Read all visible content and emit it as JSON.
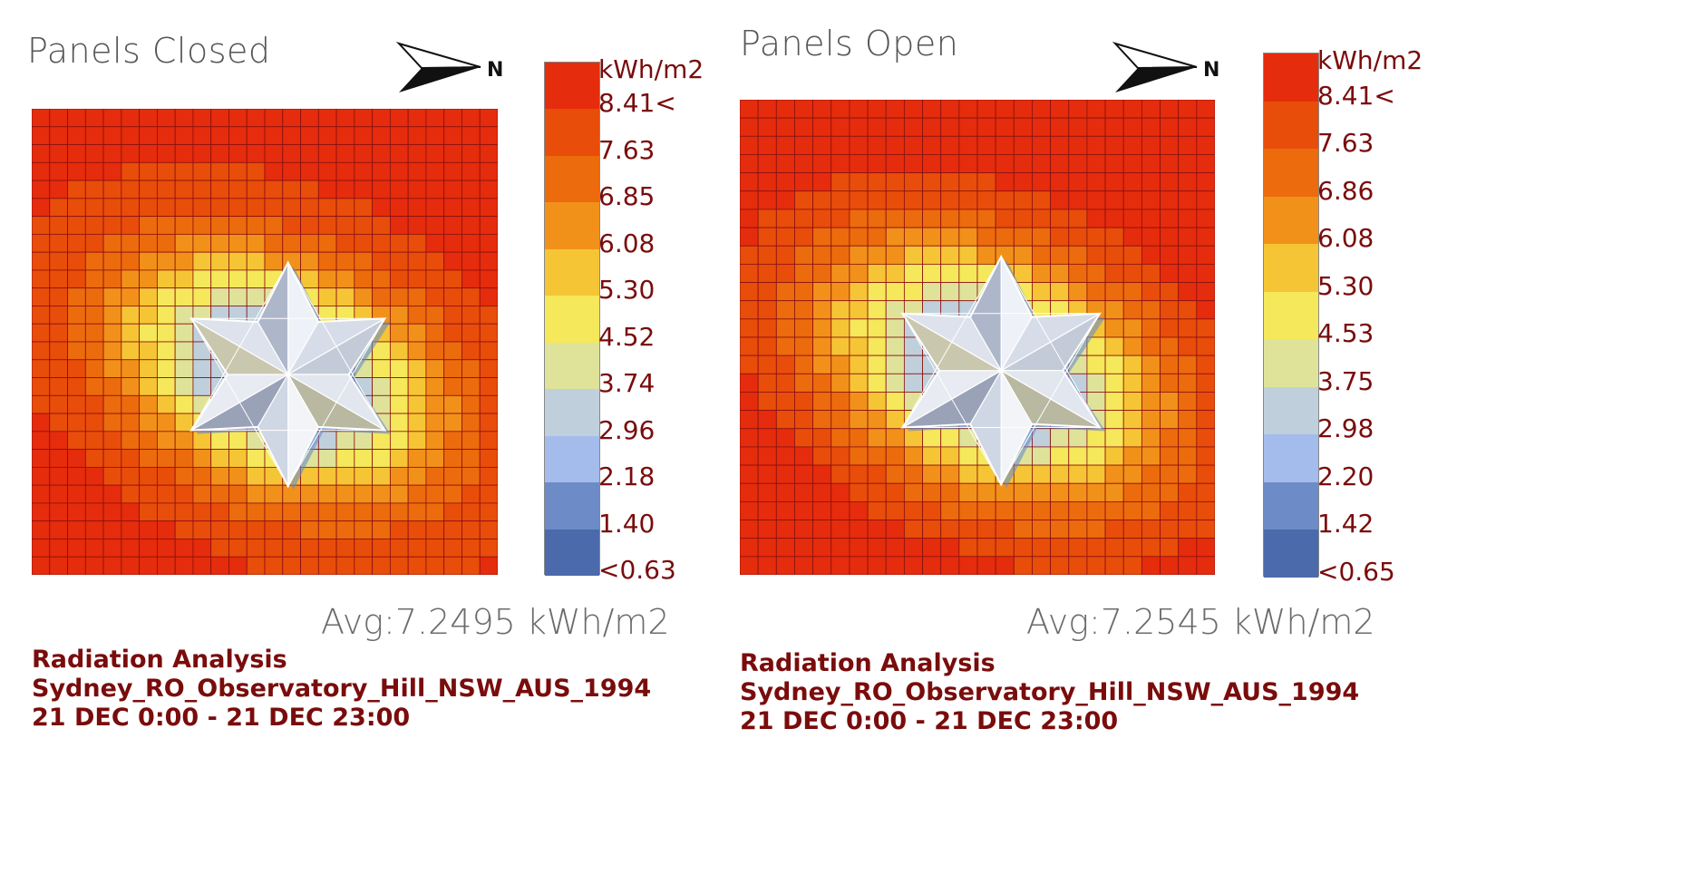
{
  "colors": {
    "scale": [
      "#4b6aab",
      "#6d8cc7",
      "#a4bcec",
      "#bfd0dc",
      "#dfe39a",
      "#f5e85a",
      "#f6c535",
      "#f29119",
      "#ec6b0c",
      "#e84d0a",
      "#e52c0c"
    ],
    "text": "#7a0c0c",
    "grid_line": "#8a1010"
  },
  "icons": {
    "north_arrow": "north-arrow-icon"
  },
  "chart_data": [
    {
      "type": "heatmap",
      "title": "Panels Closed",
      "compass_label": "N",
      "legend": {
        "unit": "kWh/m2",
        "labels": [
          "8.41<",
          "7.63",
          "6.85",
          "6.08",
          "5.30",
          "4.52",
          "3.74",
          "2.96",
          "2.18",
          "1.40",
          "<0.63"
        ]
      },
      "average": "Avg:7.2495 kWh/m2",
      "info": {
        "analysis": "Radiation Analysis",
        "location": "Sydney_RO_Observatory_Hill_NSW_AUS_1994",
        "period": "21 DEC 0:00 - 21 DEC 23:00"
      },
      "grid_size": [
        26,
        26
      ]
    },
    {
      "type": "heatmap",
      "title": "Panels Open",
      "compass_label": "N",
      "legend": {
        "unit": "kWh/m2",
        "labels": [
          "8.41<",
          "7.63",
          "6.86",
          "6.08",
          "5.30",
          "4.53",
          "3.75",
          "2.98",
          "2.20",
          "1.42",
          "<0.65"
        ]
      },
      "average": "Avg:7.2545 kWh/m2",
      "info": {
        "analysis": "Radiation Analysis",
        "location": "Sydney_RO_Observatory_Hill_NSW_AUS_1994",
        "period": "21 DEC 0:00 - 21 DEC 23:00"
      },
      "grid_size": [
        26,
        26
      ]
    }
  ]
}
